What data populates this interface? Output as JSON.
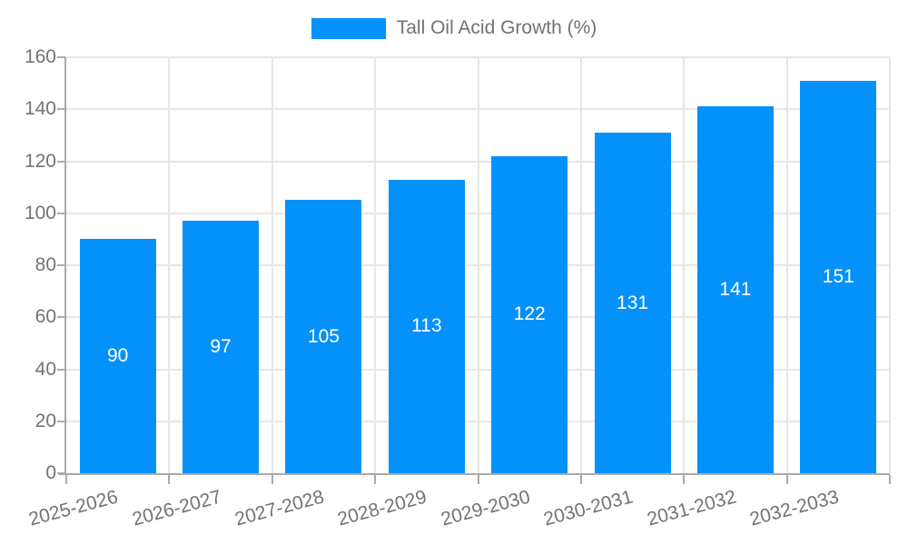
{
  "chart_data": {
    "type": "bar",
    "title": "",
    "legend_label": "Tall Oil Acid Growth (%)",
    "legend_position": "top-center",
    "categories": [
      "2025-2026",
      "2026-2027",
      "2027-2028",
      "2028-2029",
      "2029-2030",
      "2030-2031",
      "2031-2032",
      "2032-2033"
    ],
    "values": [
      90,
      97,
      105,
      113,
      122,
      131,
      141,
      151
    ],
    "yticks": [
      0,
      20,
      40,
      60,
      80,
      100,
      120,
      140,
      160
    ],
    "ylim": [
      0,
      160
    ],
    "xlabel": "",
    "ylabel": "",
    "grid": true,
    "bar_color": "#0591fa",
    "value_label_color": "#ffffff"
  },
  "colors": {
    "background": "#ffffff",
    "axis": "#ababab",
    "grid": "#e7e7e7",
    "tick_text": "#737373"
  }
}
